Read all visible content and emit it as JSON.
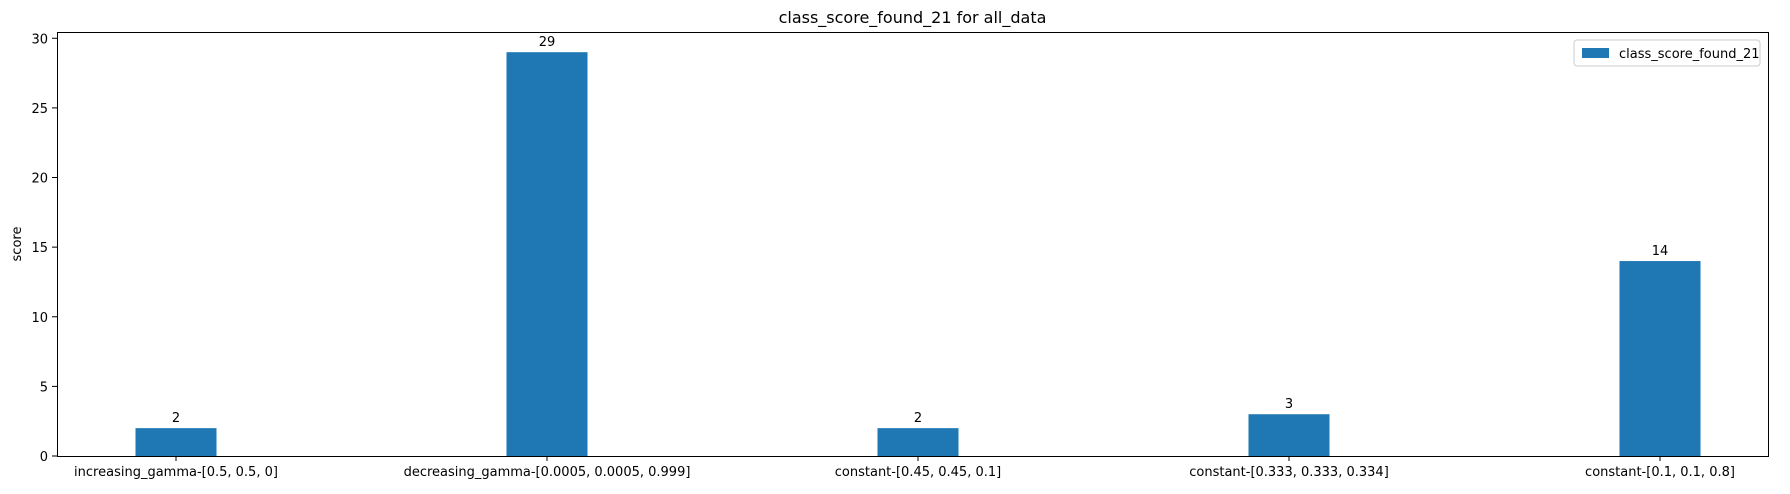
{
  "chart_data": {
    "type": "bar",
    "title": "class_score_found_21 for all_data",
    "xlabel": "",
    "ylabel": "score",
    "categories": [
      "increasing_gamma-[0.5, 0.5, 0]",
      "decreasing_gamma-[0.0005, 0.0005, 0.999]",
      "constant-[0.45, 0.45, 0.1]",
      "constant-[0.333, 0.333, 0.334]",
      "constant-[0.1, 0.1, 0.8]"
    ],
    "series": [
      {
        "name": "class_score_found_21",
        "values": [
          2,
          29,
          2,
          3,
          14
        ],
        "color": "#1f77b4"
      }
    ],
    "data_labels": [
      "2",
      "29",
      "2",
      "3",
      "14"
    ],
    "ylim": [
      0,
      30.45
    ],
    "yticks": [
      0,
      5,
      10,
      15,
      20,
      25,
      30
    ],
    "ytick_labels": [
      "0",
      "5",
      "10",
      "15",
      "20",
      "25",
      "30"
    ],
    "grid": false,
    "legend_position": "top-right"
  }
}
